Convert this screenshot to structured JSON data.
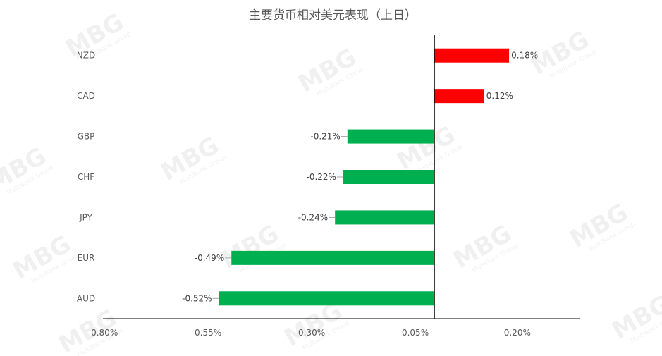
{
  "chart_data": {
    "type": "bar",
    "orientation": "horizontal",
    "title": "主要货币相对美元表现（上日）",
    "categories": [
      "NZD",
      "CAD",
      "GBP",
      "CHF",
      "JPY",
      "EUR",
      "AUD"
    ],
    "values": [
      0.18,
      0.12,
      -0.21,
      -0.22,
      -0.24,
      -0.49,
      -0.52
    ],
    "value_labels": [
      "0.18%",
      "0.12%",
      "-0.21%",
      "-0.22%",
      "-0.24%",
      "-0.49%",
      "-0.52%"
    ],
    "xlim": [
      -0.8,
      0.35
    ],
    "x_ticks": [
      -0.8,
      -0.55,
      -0.3,
      -0.05,
      0.2
    ],
    "x_tick_labels": [
      "-0.80%",
      "-0.55%",
      "-0.30%",
      "-0.05%",
      "0.20%"
    ],
    "positive_color": "#ff0000",
    "negative_color": "#00b050",
    "grid": false,
    "legend": "none"
  },
  "watermark": {
    "logo": "MBG",
    "text": "MultiBank Group"
  }
}
